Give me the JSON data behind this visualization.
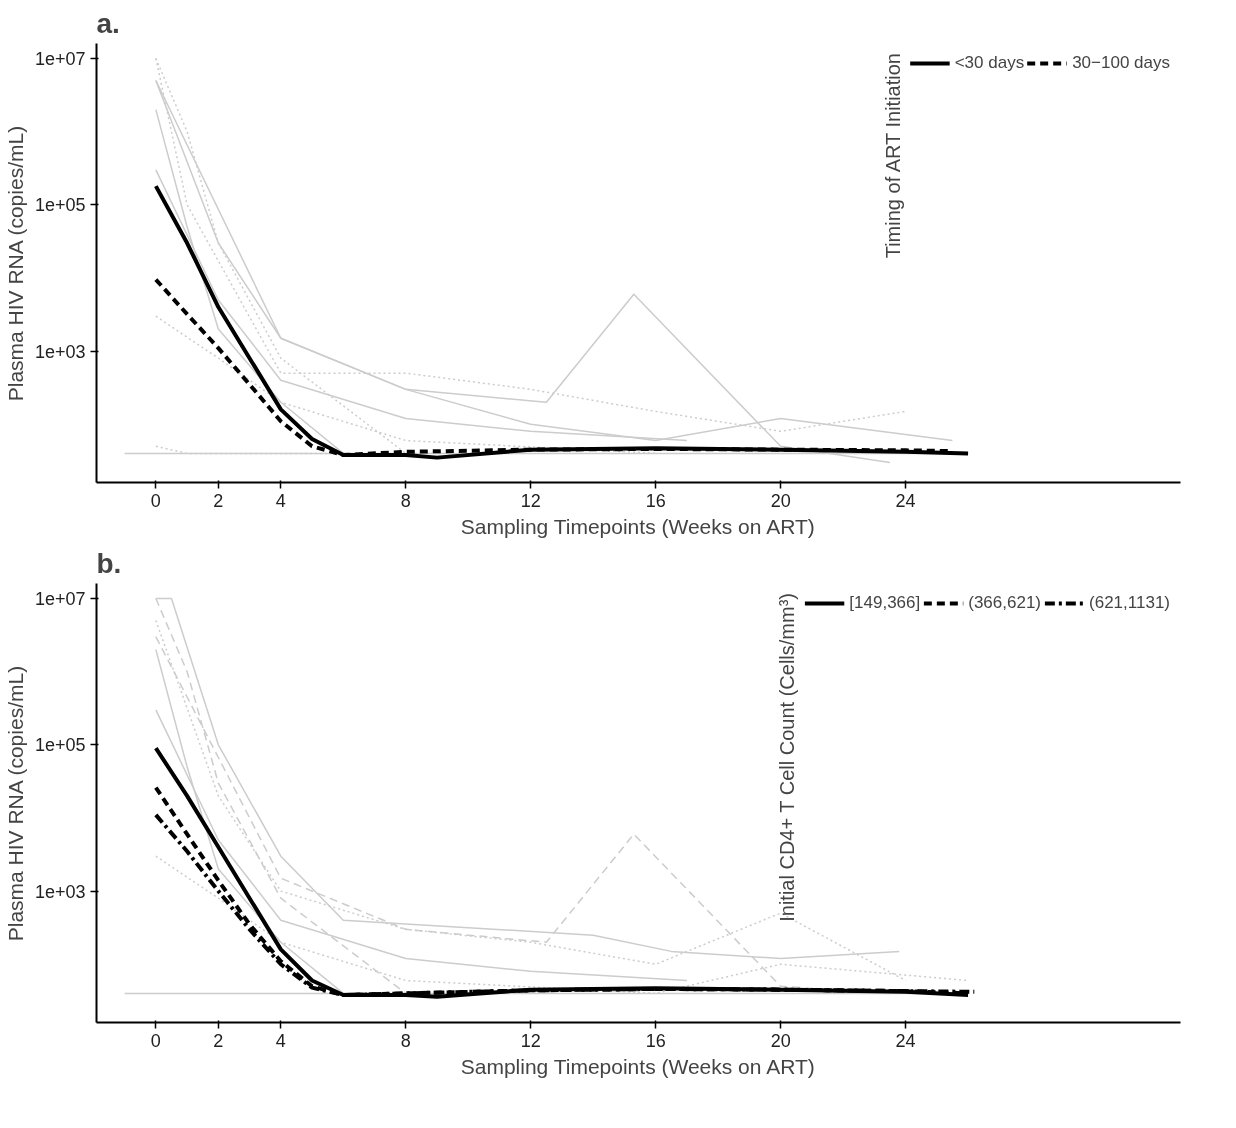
{
  "chart_data": [
    {
      "type": "line",
      "title": "a.",
      "xlabel": "Sampling Timepoints (Weeks on ART)",
      "ylabel": "Plasma HIV RNA (copies/mL)",
      "legend_title": "Timing of ART Initiation",
      "legend": "top",
      "log": true,
      "grid": false,
      "marker": "none",
      "xlim": [
        -1.9,
        32.8
      ],
      "xticks": [
        0,
        2,
        4,
        8,
        12,
        16,
        20,
        24
      ],
      "ylim": [
        16,
        16000000
      ],
      "yticks": [
        {
          "value": 1000,
          "label": "1e+03"
        },
        {
          "value": 100000,
          "label": "1e+05"
        },
        {
          "value": 10000000,
          "label": "1e+07"
        }
      ],
      "series": [
        {
          "color": "#cccccc",
          "line_style": "solid",
          "x": [
            -1,
            26
          ],
          "values": [
            40,
            40
          ]
        },
        {
          "color": "#cccccc",
          "line_style": "solid",
          "x": [
            0,
            4,
            8,
            12.5,
            15.3,
            20,
            23.5
          ],
          "values": [
            5000000,
            1500,
            300,
            200,
            6000,
            50,
            30
          ]
        },
        {
          "color": "#cccccc",
          "line_style": "dotted",
          "x": [
            0,
            1,
            4,
            8,
            12,
            16,
            20,
            24
          ],
          "values": [
            10000000,
            100000,
            500,
            500,
            300,
            150,
            80,
            150
          ]
        },
        {
          "color": "#cccccc",
          "line_style": "solid",
          "x": [
            0,
            2,
            4,
            8,
            12,
            16,
            20,
            25.5
          ],
          "values": [
            5000000,
            30000,
            1500,
            300,
            100,
            60,
            120,
            60
          ]
        },
        {
          "color": "#cccccc",
          "line_style": "dotted",
          "x": [
            0,
            1,
            2,
            4,
            8
          ],
          "values": [
            10000000,
            1000000,
            30000,
            800,
            40
          ]
        },
        {
          "color": "#cccccc",
          "line_style": "solid",
          "x": [
            0,
            1,
            2,
            4,
            6
          ],
          "values": [
            2000000,
            50000,
            2000,
            200,
            40
          ]
        },
        {
          "color": "#cccccc",
          "line_style": "dotted",
          "x": [
            0,
            2,
            4,
            8,
            16
          ],
          "values": [
            3000,
            800,
            200,
            60,
            40
          ]
        },
        {
          "color": "#cccccc",
          "line_style": "solid",
          "x": [
            0,
            2,
            4,
            8,
            12,
            17
          ],
          "values": [
            300000,
            5000,
            400,
            120,
            80,
            60
          ]
        },
        {
          "color": "#cccccc",
          "line_style": "dotted",
          "x": [
            0,
            1,
            3,
            6
          ],
          "values": [
            50,
            40,
            40,
            40
          ]
        },
        {
          "name": "<30 days",
          "color": "#000000",
          "line_style": "solid",
          "x": [
            0,
            1,
            2,
            3,
            4,
            5,
            6,
            8,
            9,
            12,
            16,
            20,
            24,
            26
          ],
          "values": [
            180000,
            30000,
            4000,
            800,
            160,
            63,
            38,
            38,
            35,
            45,
            47,
            45,
            42,
            40
          ]
        },
        {
          "name": "30−100 days",
          "color": "#000000",
          "line_style": "dashed",
          "x": [
            0,
            1,
            2,
            3,
            4,
            5,
            6,
            8,
            12,
            16,
            20,
            24,
            25.5
          ],
          "values": [
            9500,
            3200,
            1100,
            350,
            110,
            50,
            38,
            42,
            45,
            46,
            45,
            44,
            43
          ]
        }
      ]
    },
    {
      "type": "line",
      "title": "b.",
      "xlabel": "Sampling Timepoints (Weeks on ART)",
      "ylabel": "Plasma HIV RNA (copies/mL)",
      "legend_title": "Initial CD4+ T Cell Count (Cells/mm³)",
      "legend": "top",
      "log": true,
      "grid": false,
      "marker": "none",
      "xlim": [
        -1.9,
        32.8
      ],
      "xticks": [
        0,
        2,
        4,
        8,
        12,
        16,
        20,
        24
      ],
      "ylim": [
        16,
        16000000
      ],
      "yticks": [
        {
          "value": 1000,
          "label": "1e+03"
        },
        {
          "value": 100000,
          "label": "1e+05"
        },
        {
          "value": 10000000,
          "label": "1e+07"
        }
      ],
      "series": [
        {
          "color": "#cccccc",
          "line_style": "solid",
          "x": [
            -1,
            26
          ],
          "values": [
            40,
            40
          ]
        },
        {
          "color": "#cccccc",
          "line_style": "dashed",
          "x": [
            0,
            4,
            8,
            12.5,
            15.3,
            20,
            23.5
          ],
          "values": [
            3000000,
            1500,
            300,
            200,
            6000,
            50,
            40
          ]
        },
        {
          "color": "#cccccc",
          "line_style": "dotted",
          "x": [
            0,
            2,
            4,
            8,
            12,
            16,
            20,
            24
          ],
          "values": [
            5000000,
            20000,
            1000,
            300,
            200,
            100,
            500,
            60
          ]
        },
        {
          "color": "#cccccc",
          "line_style": "solid",
          "x": [
            0,
            0.5,
            2,
            4,
            6,
            14,
            16.5,
            20,
            23.8
          ],
          "values": [
            10000000,
            10000000,
            100000,
            3000,
            400,
            250,
            150,
            120,
            150
          ]
        },
        {
          "color": "#cccccc",
          "line_style": "dashed",
          "x": [
            0,
            1,
            2,
            4,
            8
          ],
          "values": [
            10000000,
            1000000,
            30000,
            800,
            40
          ]
        },
        {
          "color": "#cccccc",
          "line_style": "solid",
          "x": [
            0,
            1,
            2,
            4,
            6
          ],
          "values": [
            2000000,
            50000,
            2000,
            200,
            40
          ]
        },
        {
          "color": "#cccccc",
          "line_style": "dotted",
          "x": [
            0,
            2,
            4,
            8,
            16,
            20,
            26
          ],
          "values": [
            3000,
            800,
            200,
            60,
            40,
            100,
            60
          ]
        },
        {
          "color": "#cccccc",
          "line_style": "solid",
          "x": [
            0,
            2,
            4,
            8,
            12,
            17
          ],
          "values": [
            300000,
            5000,
            400,
            120,
            80,
            60
          ]
        },
        {
          "name": "[149,366]",
          "color": "#000000",
          "line_style": "solid",
          "x": [
            0,
            1,
            2,
            3,
            4,
            5,
            6,
            8,
            9,
            12,
            16,
            20,
            24,
            26
          ],
          "values": [
            90000,
            20000,
            4000,
            800,
            160,
            60,
            38,
            38,
            36,
            45,
            47,
            45,
            42,
            38
          ]
        },
        {
          "name": "(366,621)",
          "color": "#000000",
          "line_style": "dashed",
          "x": [
            0,
            1,
            2,
            3,
            4,
            5,
            6,
            8,
            12,
            16,
            20,
            24,
            26
          ],
          "values": [
            26000,
            6000,
            1400,
            350,
            110,
            50,
            38,
            40,
            44,
            46,
            45,
            43,
            40
          ]
        },
        {
          "name": "(621,1131)",
          "color": "#000000",
          "line_style": "dotdash",
          "x": [
            0,
            1,
            2,
            3,
            4,
            5,
            6,
            8,
            12,
            16,
            20,
            24,
            26.2
          ],
          "values": [
            11000,
            3500,
            1000,
            300,
            100,
            48,
            38,
            40,
            44,
            46,
            45,
            43,
            42
          ]
        }
      ]
    }
  ]
}
